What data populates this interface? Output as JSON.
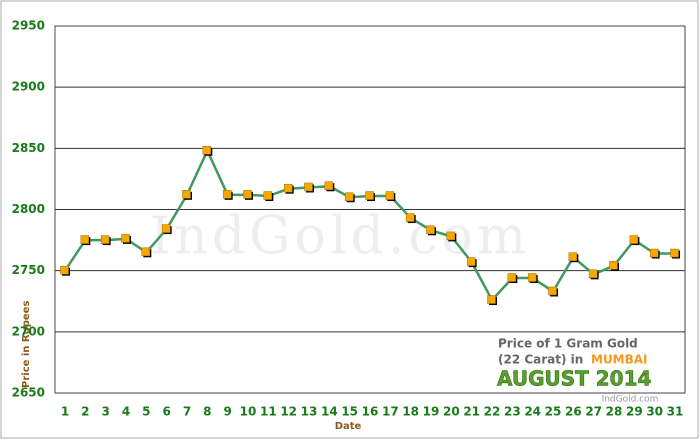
{
  "chart_data": {
    "type": "line",
    "x_label": "Date",
    "y_label": "Price in Rupees",
    "watermark": "IndGold.com",
    "inset": {
      "line1": "Price of 1 Gram Gold",
      "line2": "(22 Carat) in",
      "city": "MUMBAI",
      "month": "AUGUST 2014",
      "site": "IndGold.com"
    },
    "categories": [
      "1",
      "2",
      "3",
      "4",
      "5",
      "6",
      "7",
      "8",
      "9",
      "10",
      "11",
      "12",
      "13",
      "14",
      "15",
      "16",
      "17",
      "18",
      "19",
      "20",
      "21",
      "22",
      "23",
      "24",
      "25",
      "26",
      "27",
      "28",
      "29",
      "30",
      "31"
    ],
    "series": [
      {
        "color": "#3f9a5e",
        "marker_color": "#f7a800",
        "values": [
          2750,
          2775,
          2775,
          2776,
          2765,
          2784,
          2812,
          2848,
          2812,
          2812,
          2811,
          2817,
          2818,
          2819,
          2810,
          2811,
          2811,
          2793,
          2783,
          2778,
          2757,
          2726,
          2744,
          2744,
          2733,
          2761,
          2747,
          2754,
          2775,
          2764,
          2764
        ]
      }
    ],
    "ylim": [
      2650,
      2950
    ],
    "yticks": [
      2650,
      2700,
      2750,
      2800,
      2850,
      2900,
      2950
    ],
    "grid": true
  }
}
